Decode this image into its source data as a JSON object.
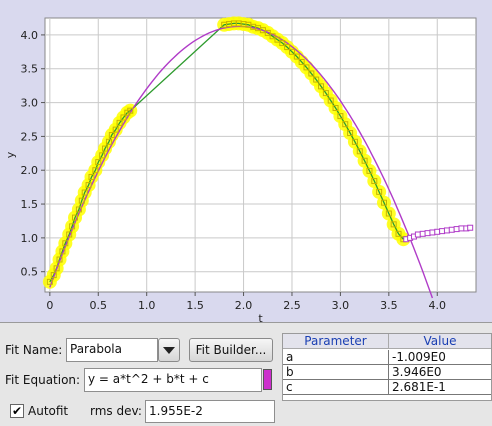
{
  "chart_data": {
    "type": "scatter",
    "xlabel": "t",
    "ylabel": "y",
    "xlim": [
      -0.05,
      4.4
    ],
    "ylim": [
      0.2,
      4.25
    ],
    "x_ticks": [
      "0",
      "0.5",
      "1.0",
      "1.5",
      "2.0",
      "2.5",
      "3.0",
      "3.5",
      "4.0"
    ],
    "y_ticks": [
      "0.5",
      "1.0",
      "1.5",
      "2.0",
      "2.5",
      "3.0",
      "3.5",
      "4.0"
    ],
    "grid": true,
    "series": [
      {
        "kind": "data-points",
        "points": [
          [
            0.0,
            0.35
          ],
          [
            0.04,
            0.45
          ],
          [
            0.07,
            0.55
          ],
          [
            0.1,
            0.68
          ],
          [
            0.13,
            0.8
          ],
          [
            0.16,
            0.92
          ],
          [
            0.2,
            1.05
          ],
          [
            0.23,
            1.17
          ],
          [
            0.26,
            1.3
          ],
          [
            0.3,
            1.42
          ],
          [
            0.33,
            1.55
          ],
          [
            0.36,
            1.67
          ],
          [
            0.4,
            1.78
          ],
          [
            0.43,
            1.9
          ],
          [
            0.47,
            2.0
          ],
          [
            0.5,
            2.12
          ],
          [
            0.54,
            2.22
          ],
          [
            0.57,
            2.32
          ],
          [
            0.61,
            2.42
          ],
          [
            0.64,
            2.52
          ],
          [
            0.68,
            2.6
          ],
          [
            0.72,
            2.7
          ],
          [
            0.76,
            2.78
          ],
          [
            0.8,
            2.85
          ],
          [
            0.83,
            2.88
          ],
          [
            1.8,
            4.15
          ],
          [
            1.85,
            4.16
          ],
          [
            1.9,
            4.17
          ],
          [
            1.95,
            4.17
          ],
          [
            2.0,
            4.16
          ],
          [
            2.05,
            4.15
          ],
          [
            2.1,
            4.12
          ],
          [
            2.15,
            4.1
          ],
          [
            2.2,
            4.07
          ],
          [
            2.25,
            4.03
          ],
          [
            2.3,
            3.98
          ],
          [
            2.35,
            3.93
          ],
          [
            2.4,
            3.88
          ],
          [
            2.45,
            3.82
          ],
          [
            2.5,
            3.75
          ],
          [
            2.55,
            3.68
          ],
          [
            2.6,
            3.6
          ],
          [
            2.65,
            3.52
          ],
          [
            2.7,
            3.43
          ],
          [
            2.75,
            3.34
          ],
          [
            2.8,
            3.24
          ],
          [
            2.85,
            3.14
          ],
          [
            2.9,
            3.03
          ],
          [
            2.95,
            2.92
          ],
          [
            3.0,
            2.8
          ],
          [
            3.05,
            2.68
          ],
          [
            3.1,
            2.55
          ],
          [
            3.15,
            2.42
          ],
          [
            3.2,
            2.28
          ],
          [
            3.25,
            2.14
          ],
          [
            3.3,
            1.99
          ],
          [
            3.35,
            1.84
          ],
          [
            3.4,
            1.68
          ],
          [
            3.45,
            1.52
          ],
          [
            3.5,
            1.36
          ],
          [
            3.55,
            1.2
          ],
          [
            3.6,
            1.06
          ],
          [
            3.65,
            0.98
          ]
        ]
      },
      {
        "kind": "unselected-points",
        "points": [
          [
            3.68,
            0.98
          ],
          [
            3.72,
            1.0
          ],
          [
            3.76,
            1.02
          ],
          [
            3.8,
            1.05
          ],
          [
            3.85,
            1.06
          ],
          [
            3.9,
            1.07
          ],
          [
            3.95,
            1.08
          ],
          [
            4.0,
            1.09
          ],
          [
            4.05,
            1.1
          ],
          [
            4.1,
            1.11
          ],
          [
            4.15,
            1.12
          ],
          [
            4.2,
            1.13
          ],
          [
            4.25,
            1.14
          ],
          [
            4.3,
            1.14
          ],
          [
            4.34,
            1.15
          ]
        ]
      },
      {
        "kind": "fit-curve",
        "equation": "y = a*t^2 + b*t + c",
        "a": -1.009,
        "b": 3.946,
        "c": 0.2681,
        "t_range": [
          0.0,
          3.95
        ]
      }
    ]
  },
  "colors": {
    "plot_bg": "#d9d9ee",
    "data_point": "#ffff00",
    "data_point_edge": "#c8b400",
    "data_line": "#2e9b2e",
    "fit_curve": "#b03cc8",
    "unselected_point": "#b03cc8",
    "header_text": "#1a3fb3"
  },
  "fit_panel": {
    "fit_name_label": "Fit Name:",
    "fit_name_value": "Parabola",
    "fit_builder_label": "Fit Builder...",
    "fit_equation_label": "Fit Equation:",
    "fit_equation_value": "y = a*t^2 + b*t + c",
    "autofit_label": "Autofit",
    "rms_label": "rms dev:",
    "rms_value": "1.955E-2"
  },
  "parameter_table": {
    "headers": [
      "Parameter",
      "Value"
    ],
    "rows": [
      {
        "name": "a",
        "value": "-1.009E0"
      },
      {
        "name": "b",
        "value": "3.946E0"
      },
      {
        "name": "c",
        "value": "2.681E-1"
      }
    ]
  }
}
